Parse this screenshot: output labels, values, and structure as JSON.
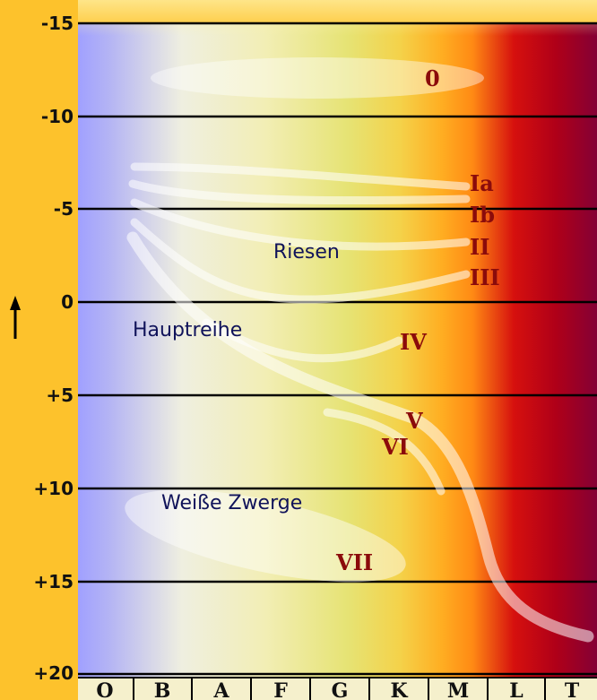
{
  "y_axis": {
    "ticks": [
      "-15",
      "-10",
      "-5",
      "0",
      "+5",
      "+10",
      "+15",
      "+20"
    ],
    "arrow_icon": "up-arrow-icon"
  },
  "x_axis": {
    "spectral_classes": [
      "O",
      "B",
      "A",
      "F",
      "G",
      "K",
      "M",
      "L",
      "T"
    ]
  },
  "regions": {
    "riesen": "Riesen",
    "hauptreihe": "Hauptreihe",
    "weisse_zwerge": "Weiße Zwerge"
  },
  "luminosity_classes": [
    "0",
    "Ia",
    "Ib",
    "II",
    "III",
    "IV",
    "V",
    "VI",
    "VII"
  ],
  "colors": {
    "background_left": "#a6a6ff",
    "background_mid": "#f1ec9a",
    "background_orange": "#ff9a1a",
    "background_right": "#8b0030",
    "border": "#fdc22c",
    "label_dark_red": "#8b0b0b",
    "label_navy": "#10135a"
  }
}
